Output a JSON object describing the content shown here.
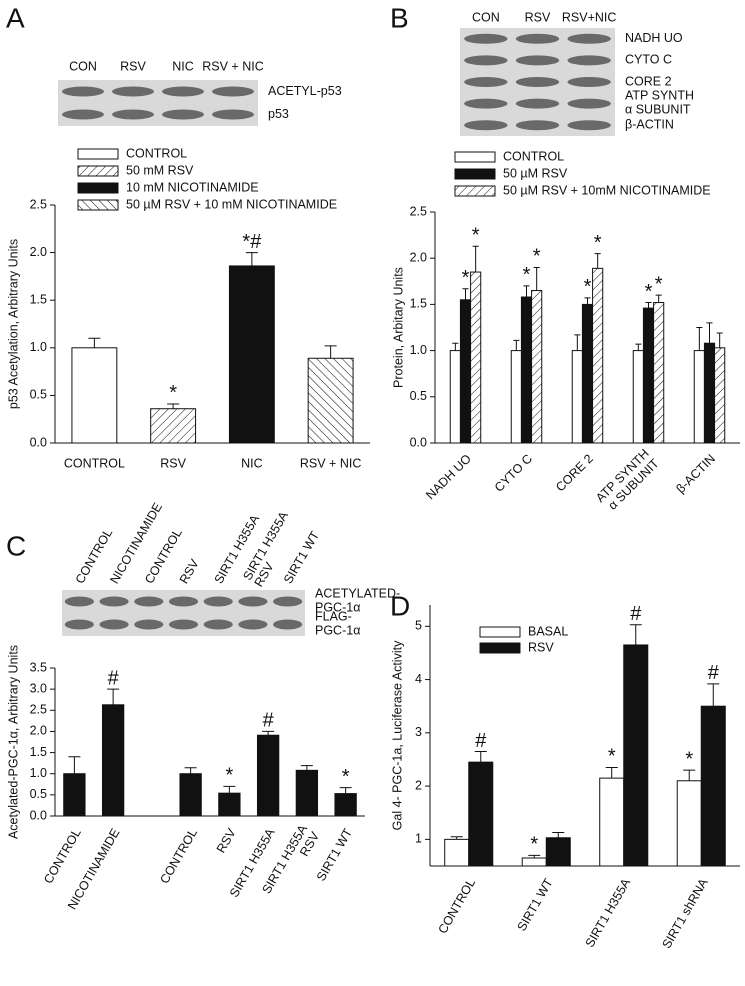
{
  "chart_data": [
    {
      "type": "bar",
      "panel": "A",
      "blot": {
        "lanes": [
          "CON",
          "RSV",
          "NIC",
          "RSV + NIC"
        ],
        "rows": [
          "ACETYL-p53",
          "p53"
        ]
      },
      "ylabel": "p53 Acetylation, Arbitrary Units",
      "categories": [
        "CONTROL",
        "RSV",
        "NIC",
        "RSV + NIC"
      ],
      "series": [
        {
          "name": "CONTROL",
          "style": "open",
          "values": [
            1.0,
            null,
            null,
            null
          ],
          "errors": [
            0.1,
            null,
            null,
            null
          ],
          "annotations": [
            null,
            null,
            null,
            null
          ]
        },
        {
          "name": "50 mM RSV",
          "style": "hatch-right",
          "values": [
            null,
            0.36,
            null,
            null
          ],
          "errors": [
            null,
            0.05,
            null,
            null
          ],
          "annotations": [
            null,
            "*",
            null,
            null
          ]
        },
        {
          "name": "10 mM NICOTINAMIDE",
          "style": "solid",
          "values": [
            null,
            null,
            1.86,
            null
          ],
          "errors": [
            null,
            null,
            0.14,
            null
          ],
          "annotations": [
            null,
            null,
            "*#",
            null
          ]
        },
        {
          "name": "50 µM RSV + 10 mM NICOTINAMIDE",
          "style": "hatch-left",
          "values": [
            null,
            null,
            null,
            0.89
          ],
          "errors": [
            null,
            null,
            null,
            0.13
          ],
          "annotations": [
            null,
            null,
            null,
            null
          ]
        }
      ],
      "ylim": [
        0,
        2.5
      ],
      "yticks": [
        {
          "value": 0,
          "label": "0.0"
        },
        0.5,
        {
          "value": 1,
          "label": "1.0"
        },
        1.5,
        {
          "value": 2,
          "label": "2.0"
        },
        2.5
      ],
      "grid": false,
      "legend": "top-left"
    },
    {
      "type": "bar",
      "panel": "B",
      "blot": {
        "lanes": [
          "CON",
          "RSV",
          "RSV+NIC"
        ],
        "rows": [
          "NADH UO",
          "CYTO C",
          "CORE 2",
          "ATP SYNTH\nα SUBUNIT",
          "β-ACTIN"
        ]
      },
      "ylabel": "Protein, Arbitary Units",
      "categories": [
        "NADH UO",
        "CYTO C",
        "CORE 2",
        "ATP SYNTH\nα SUBUNIT",
        "β-ACTIN"
      ],
      "series": [
        {
          "name": "CONTROL",
          "style": "open",
          "values": [
            1.0,
            1.0,
            1.0,
            1.0,
            1.0
          ],
          "errors": [
            0.08,
            0.11,
            0.17,
            0.07,
            0.25
          ],
          "annotations": [
            null,
            null,
            null,
            null,
            null
          ]
        },
        {
          "name": "50 µM RSV",
          "style": "solid",
          "values": [
            1.55,
            1.58,
            1.5,
            1.46,
            1.08
          ],
          "errors": [
            0.12,
            0.12,
            0.07,
            0.06,
            0.22
          ],
          "annotations": [
            "*",
            "*",
            "*",
            "*",
            null
          ]
        },
        {
          "name": "50 µM RSV + 10mM NICOTINAMIDE",
          "style": "hatch-right",
          "values": [
            1.85,
            1.65,
            1.89,
            1.52,
            1.03
          ],
          "errors": [
            0.28,
            0.25,
            0.16,
            0.08,
            0.16
          ],
          "annotations": [
            "*",
            "*",
            "*",
            "*",
            null
          ]
        }
      ],
      "ylim": [
        0,
        2.5
      ],
      "yticks": [
        {
          "value": 0,
          "label": "0.0"
        },
        0.5,
        {
          "value": 1,
          "label": "1.0"
        },
        1.5,
        {
          "value": 2,
          "label": "2.0"
        },
        2.5
      ],
      "grid": false,
      "legend": "top-left"
    },
    {
      "type": "bar",
      "panel": "C",
      "blot": {
        "lanes": [
          "CONTROL",
          "NICOTINAMIDE",
          "CONTROL",
          "RSV",
          "SIRT1 H355A",
          "SIRT1 H355A\nRSV",
          "SIRT1 WT"
        ],
        "rows": [
          "ACETYLATED-\nPGC-1α",
          "FLAG-\nPGC-1α"
        ]
      },
      "ylabel": "Acetylated-PGC-1α, Arbitrary Units",
      "categories": [
        "CONTROL",
        "NICOTINAMIDE",
        null,
        "CONTROL",
        "RSV",
        "SIRT1 H355A",
        "SIRT1 H355A\nRSV",
        "SIRT1 WT"
      ],
      "series": [
        {
          "style": "solid",
          "values": [
            1.0,
            2.63,
            null,
            1.0,
            0.54,
            1.91,
            1.08,
            0.53
          ],
          "errors": [
            0.4,
            0.37,
            null,
            0.14,
            0.16,
            0.09,
            0.11,
            0.14
          ],
          "annotations": [
            null,
            "#",
            null,
            null,
            "*",
            "#",
            null,
            "*"
          ]
        }
      ],
      "ylim": [
        0,
        3.5
      ],
      "yticks": [
        {
          "value": 0,
          "label": "0.0"
        },
        0.5,
        {
          "value": 1,
          "label": "1.0"
        },
        1.5,
        {
          "value": 2,
          "label": "2.0"
        },
        2.5,
        {
          "value": 3,
          "label": "3.0"
        },
        3.5
      ],
      "grid": false
    },
    {
      "type": "bar",
      "panel": "D",
      "ylabel": "Gal 4- PGC-1a, Luciferase Activity",
      "categories": [
        "CONTROL",
        "SIRT1 WT",
        "SIRT1 H355A",
        "SIRT1 shRNA"
      ],
      "series": [
        {
          "name": "BASAL",
          "style": "open",
          "values": [
            1.0,
            0.65,
            2.15,
            2.1
          ],
          "errors": [
            0.05,
            0.05,
            0.2,
            0.2
          ],
          "annotations": [
            null,
            "*",
            "*",
            "*"
          ]
        },
        {
          "name": "RSV",
          "style": "solid",
          "values": [
            2.45,
            1.03,
            4.65,
            3.5
          ],
          "errors": [
            0.2,
            0.1,
            0.38,
            0.42
          ],
          "annotations": [
            "#",
            null,
            "#",
            "#"
          ]
        }
      ],
      "ylim": [
        0.5,
        5.4
      ],
      "yticks": [
        1,
        2,
        3,
        4,
        5
      ],
      "grid": false,
      "legend": "top-left"
    }
  ]
}
